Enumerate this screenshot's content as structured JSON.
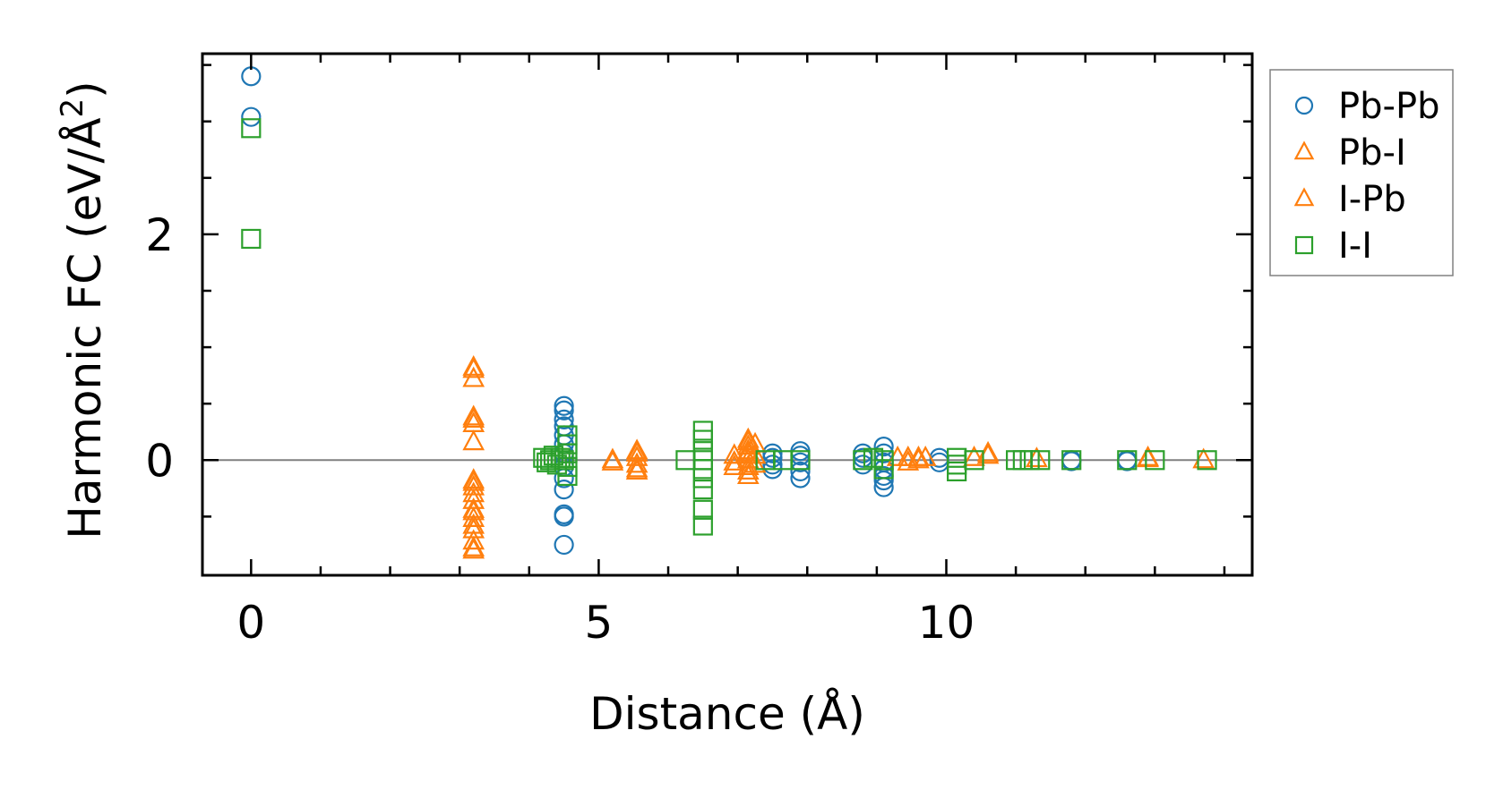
{
  "chart_data": {
    "type": "scatter",
    "title": "",
    "xlabel": "Distance (Å)",
    "ylabel": {
      "main": "Harmonic FC (eV/Å",
      "sup": "2",
      "end": ")"
    },
    "xlim": [
      -0.7,
      14.4
    ],
    "ylim": [
      -1.02,
      3.6
    ],
    "xticks": [
      0,
      5,
      10
    ],
    "xtick_labels": [
      "0",
      "5",
      "10"
    ],
    "xminor": [
      0,
      1,
      2,
      3,
      4,
      5,
      6,
      7,
      8,
      9,
      10,
      11,
      12,
      13,
      14
    ],
    "yticks": [
      0,
      2
    ],
    "ytick_labels": [
      "0",
      "2"
    ],
    "yminor": [
      -0.5,
      0,
      0.5,
      1,
      1.5,
      2,
      2.5,
      3,
      3.5
    ],
    "zero_line": true,
    "grid": false,
    "legend_position": "outside-right-top",
    "series": [
      {
        "name": "Pb-Pb",
        "marker": "circle",
        "color": "#1f77b4",
        "points": [
          [
            0,
            3.4
          ],
          [
            0,
            3.04
          ],
          [
            4.5,
            0.48
          ],
          [
            4.5,
            0.44
          ],
          [
            4.5,
            0.36
          ],
          [
            4.5,
            0.3
          ],
          [
            4.5,
            0.22
          ],
          [
            4.5,
            0.14
          ],
          [
            4.5,
            0.06
          ],
          [
            4.5,
            -0.06
          ],
          [
            4.5,
            -0.16
          ],
          [
            4.5,
            -0.26
          ],
          [
            4.5,
            -0.48
          ],
          [
            4.5,
            -0.5
          ],
          [
            4.5,
            -0.75
          ],
          [
            7.5,
            0.06
          ],
          [
            7.5,
            0.02
          ],
          [
            7.5,
            -0.04
          ],
          [
            7.5,
            -0.08
          ],
          [
            7.9,
            0.08
          ],
          [
            7.9,
            0.04
          ],
          [
            7.9,
            -0.02
          ],
          [
            7.9,
            -0.1
          ],
          [
            7.9,
            -0.16
          ],
          [
            8.8,
            0.06
          ],
          [
            8.8,
            0.02
          ],
          [
            8.8,
            -0.04
          ],
          [
            9.1,
            0.12
          ],
          [
            9.1,
            0.06
          ],
          [
            9.1,
            -0.02
          ],
          [
            9.1,
            -0.08
          ],
          [
            9.1,
            -0.14
          ],
          [
            9.1,
            -0.18
          ],
          [
            9.1,
            -0.24
          ],
          [
            9.9,
            0.02
          ],
          [
            9.9,
            -0.02
          ],
          [
            11.8,
            0.0
          ],
          [
            11.8,
            -0.01
          ],
          [
            12.6,
            0.0
          ],
          [
            12.6,
            -0.01
          ]
        ]
      },
      {
        "name": "Pb-I",
        "marker": "triangle",
        "color": "#ff7f0e",
        "points": [
          [
            3.2,
            0.82
          ],
          [
            3.2,
            0.72
          ],
          [
            3.2,
            0.36
          ],
          [
            3.2,
            0.32
          ],
          [
            3.2,
            0.16
          ],
          [
            3.2,
            -0.18
          ],
          [
            3.2,
            -0.24
          ],
          [
            3.2,
            -0.3
          ],
          [
            3.2,
            -0.36
          ],
          [
            3.2,
            -0.44
          ],
          [
            3.2,
            -0.52
          ],
          [
            3.2,
            -0.62
          ],
          [
            3.2,
            -0.72
          ],
          [
            3.2,
            -0.8
          ],
          [
            5.2,
            0.0
          ],
          [
            5.2,
            -0.02
          ],
          [
            5.55,
            0.08
          ],
          [
            5.55,
            0.02
          ],
          [
            5.55,
            -0.04
          ],
          [
            5.55,
            -0.1
          ],
          [
            6.95,
            0.04
          ],
          [
            6.95,
            -0.02
          ],
          [
            6.95,
            -0.06
          ],
          [
            7.15,
            0.18
          ],
          [
            7.15,
            0.12
          ],
          [
            7.15,
            0.06
          ],
          [
            7.15,
            0.0
          ],
          [
            7.15,
            -0.06
          ],
          [
            7.15,
            -0.14
          ],
          [
            7.25,
            0.14
          ],
          [
            7.25,
            0.04
          ],
          [
            7.25,
            -0.04
          ],
          [
            9.3,
            0.02
          ],
          [
            9.45,
            0.02
          ],
          [
            9.6,
            0.0
          ],
          [
            9.7,
            0.02
          ],
          [
            10.4,
            0.02
          ],
          [
            10.6,
            0.06
          ],
          [
            11.3,
            0.01
          ],
          [
            12.9,
            0.02
          ],
          [
            13.7,
            0.0
          ]
        ]
      },
      {
        "name": "I-Pb",
        "marker": "triangle",
        "color": "#ff7f0e",
        "points": [
          [
            3.2,
            0.8
          ],
          [
            3.2,
            0.38
          ],
          [
            3.2,
            -0.2
          ],
          [
            3.2,
            -0.46
          ],
          [
            3.2,
            -0.58
          ],
          [
            3.2,
            -0.78
          ],
          [
            5.55,
            0.06
          ],
          [
            5.55,
            -0.08
          ],
          [
            7.15,
            0.16
          ],
          [
            7.15,
            0.08
          ],
          [
            7.15,
            -0.1
          ],
          [
            9.45,
            -0.02
          ],
          [
            9.6,
            0.02
          ],
          [
            10.6,
            0.04
          ],
          [
            12.9,
            0.01
          ]
        ]
      },
      {
        "name": "I-I",
        "marker": "square",
        "color": "#2ca02c",
        "points": [
          [
            0,
            2.94
          ],
          [
            0,
            1.96
          ],
          [
            4.2,
            0.02
          ],
          [
            4.25,
            -0.02
          ],
          [
            4.3,
            0.0
          ],
          [
            4.35,
            0.04
          ],
          [
            4.4,
            -0.04
          ],
          [
            4.45,
            0.02
          ],
          [
            4.5,
            0.0
          ],
          [
            4.55,
            0.06
          ],
          [
            4.55,
            -0.06
          ],
          [
            4.55,
            0.14
          ],
          [
            4.55,
            -0.14
          ],
          [
            4.55,
            0.22
          ],
          [
            6.25,
            0.0
          ],
          [
            6.5,
            0.26
          ],
          [
            6.5,
            0.18
          ],
          [
            6.5,
            0.08
          ],
          [
            6.5,
            0.0
          ],
          [
            6.5,
            -0.08
          ],
          [
            6.5,
            -0.16
          ],
          [
            6.5,
            -0.26
          ],
          [
            6.5,
            -0.44
          ],
          [
            6.5,
            -0.58
          ],
          [
            7.4,
            0.0
          ],
          [
            7.65,
            0.0
          ],
          [
            7.9,
            0.0
          ],
          [
            8.8,
            0.0
          ],
          [
            8.95,
            0.02
          ],
          [
            9.1,
            0.0
          ],
          [
            9.1,
            -0.08
          ],
          [
            10.15,
            0.02
          ],
          [
            10.15,
            -0.04
          ],
          [
            10.15,
            -0.1
          ],
          [
            10.4,
            0.0
          ],
          [
            11.0,
            0.0
          ],
          [
            11.1,
            0.0
          ],
          [
            11.2,
            0.0
          ],
          [
            11.35,
            0.0
          ],
          [
            11.8,
            0.0
          ],
          [
            12.6,
            0.0
          ],
          [
            13.0,
            0.0
          ],
          [
            13.75,
            0.0
          ]
        ]
      }
    ],
    "legend": [
      {
        "label": "Pb-Pb",
        "marker": "circle",
        "color": "#1f77b4"
      },
      {
        "label": "Pb-I",
        "marker": "triangle",
        "color": "#ff7f0e"
      },
      {
        "label": "I-Pb",
        "marker": "triangle",
        "color": "#ff7f0e"
      },
      {
        "label": "I-I",
        "marker": "square",
        "color": "#2ca02c"
      }
    ]
  }
}
